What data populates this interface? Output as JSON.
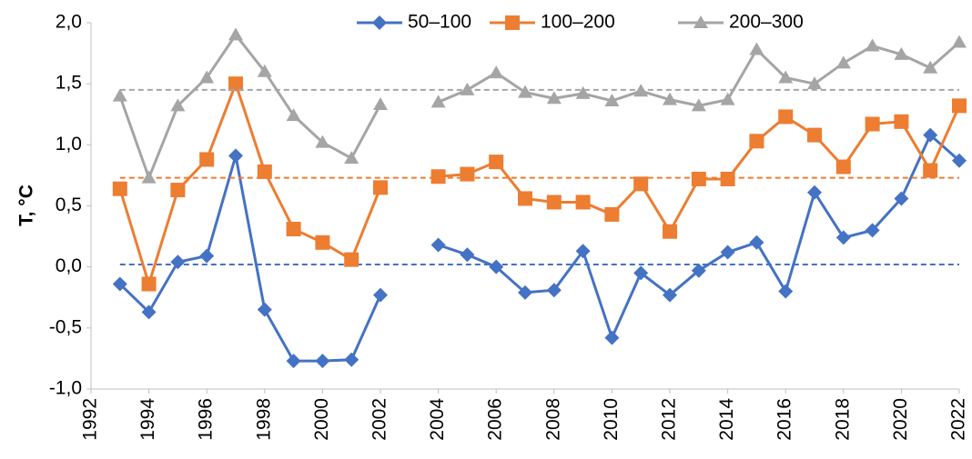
{
  "chart_data": {
    "type": "line",
    "y_label": "T, °C",
    "x": [
      1993,
      1994,
      1995,
      1996,
      1997,
      1998,
      1999,
      2000,
      2001,
      2002,
      2003,
      2004,
      2005,
      2006,
      2007,
      2008,
      2009,
      2010,
      2011,
      2012,
      2013,
      2014,
      2015,
      2016,
      2017,
      2018,
      2019,
      2020,
      2021,
      2022
    ],
    "series": [
      {
        "name": "50–100",
        "color": "#4472c4",
        "marker": "diamond",
        "mean": 0.02,
        "values": [
          -0.14,
          -0.37,
          0.04,
          0.09,
          0.91,
          -0.35,
          -0.77,
          -0.77,
          -0.76,
          -0.23,
          null,
          0.18,
          0.1,
          0.0,
          -0.21,
          -0.19,
          0.13,
          -0.58,
          -0.05,
          -0.23,
          -0.03,
          0.12,
          0.2,
          -0.2,
          0.61,
          0.24,
          0.3,
          0.56,
          1.08,
          0.87
        ]
      },
      {
        "name": "100–200",
        "color": "#ed7d31",
        "marker": "square",
        "mean": 0.73,
        "values": [
          0.64,
          -0.14,
          0.63,
          0.88,
          1.5,
          0.78,
          0.31,
          0.2,
          0.06,
          0.65,
          null,
          0.74,
          0.76,
          0.86,
          0.56,
          0.53,
          0.53,
          0.43,
          0.68,
          0.29,
          0.72,
          0.72,
          1.03,
          1.23,
          1.08,
          0.82,
          1.17,
          1.19,
          0.79,
          1.32
        ]
      },
      {
        "name": "200–300",
        "color": "#a5a5a5",
        "marker": "triangle",
        "mean": 1.45,
        "values": [
          1.4,
          0.73,
          1.32,
          1.55,
          1.9,
          1.6,
          1.24,
          1.02,
          0.89,
          1.33,
          null,
          1.35,
          1.45,
          1.59,
          1.43,
          1.38,
          1.42,
          1.36,
          1.44,
          1.37,
          1.32,
          1.37,
          1.78,
          1.55,
          1.5,
          1.67,
          1.81,
          1.74,
          1.63,
          1.84
        ]
      }
    ],
    "xlim": [
      1992,
      2022
    ],
    "xticks": [
      1992,
      1994,
      1996,
      1998,
      2000,
      2002,
      2004,
      2006,
      2008,
      2010,
      2012,
      2014,
      2016,
      2018,
      2020,
      2022
    ],
    "ylim": [
      -1.0,
      2.0
    ],
    "yticks": [
      {
        "value": -1.0,
        "label": "-1,0"
      },
      {
        "value": -0.5,
        "label": "-0,5"
      },
      {
        "value": 0.0,
        "label": "0,0"
      },
      {
        "value": 0.5,
        "label": "0,5"
      },
      {
        "value": 1.0,
        "label": "1,0"
      },
      {
        "value": 1.5,
        "label": "1,5"
      },
      {
        "value": 2.0,
        "label": "2,0"
      }
    ],
    "grid": false,
    "legend": "top"
  }
}
